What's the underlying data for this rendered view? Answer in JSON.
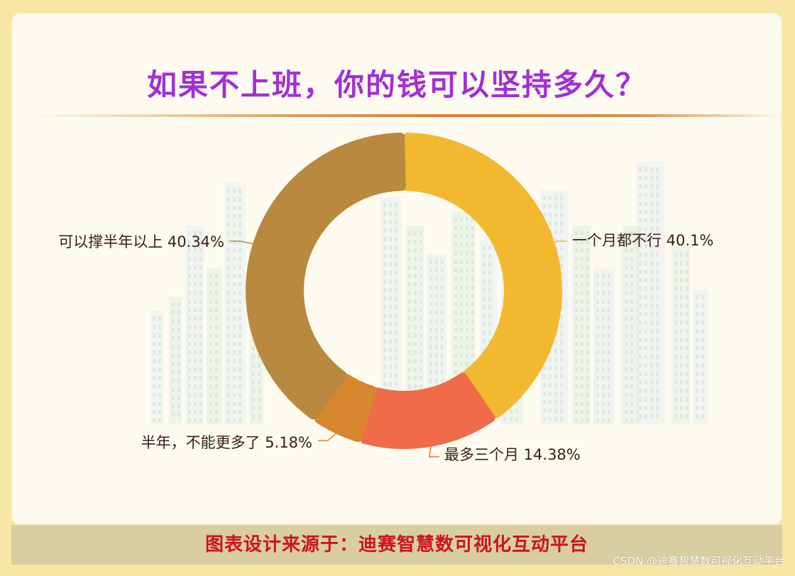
{
  "title": "如果不上班，你的钱可以坚持多久？",
  "footer": "图表设计来源于：迪赛智慧数可视化互动平台",
  "watermark": "CSDN @迪赛智慧数可视化互动平台",
  "colors": {
    "title": "#a22fd6",
    "footer_text": "#d0121c",
    "footer_bg": "#d8cea2",
    "page_bg": "#f8e7a4",
    "card_bg": "#fdfbf0"
  },
  "chart_data": {
    "type": "pie",
    "variant": "donut",
    "title": "如果不上班，你的钱可以坚持多久？",
    "slices": [
      {
        "label": "一个月都不行",
        "value": 40.1,
        "display": "一个月都不行 40.1%",
        "color": "#f2b82f"
      },
      {
        "label": "最多三个月",
        "value": 14.38,
        "display": "最多三个月 14.38%",
        "color": "#ef6b49"
      },
      {
        "label": "半年，不能更多了",
        "value": 5.18,
        "display": "半年，不能更多了 5.18%",
        "color": "#d8872f"
      },
      {
        "label": "可以撑半年以上",
        "value": 40.34,
        "display": "可以撑半年以上 40.34%",
        "color": "#b8893e"
      }
    ]
  }
}
